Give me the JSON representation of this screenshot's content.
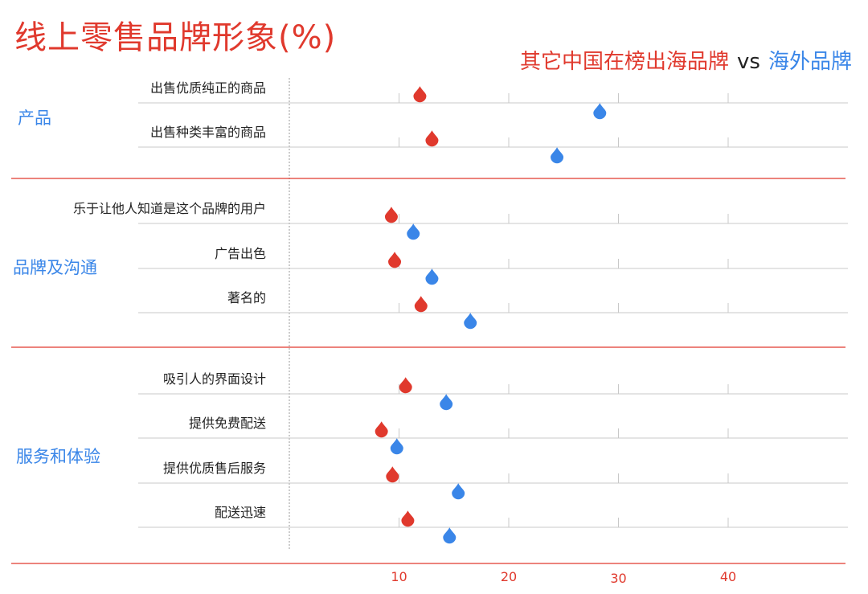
{
  "title": "线上零售品牌形象(%)",
  "legend": {
    "series_a": "其它中国在榜出海品牌",
    "vs": "vs",
    "series_b": "海外品牌"
  },
  "colors": {
    "series_a": "#e0392d",
    "series_b": "#3a86e8",
    "axis": "#e0392d",
    "grid": "#c8c8c8"
  },
  "chart_data": {
    "type": "scatter",
    "title": "线上零售品牌形象(%)",
    "xlabel": "",
    "ylabel": "",
    "xlim": [
      0,
      41.3
    ],
    "x_ticks": [
      "10",
      "20",
      "30",
      "40"
    ],
    "grid": true,
    "legend_position": "top-right",
    "groups": [
      {
        "label": "产品",
        "items": [
          "出售优质纯正的商品",
          "出售种类丰富的商品"
        ]
      },
      {
        "label": "品牌及沟通",
        "items": [
          "乐于让他人知道是这个品牌的用户",
          "广告出色",
          "著名的"
        ]
      },
      {
        "label": "服务和体验",
        "items": [
          "吸引人的界面设计",
          "提供免费配送",
          "提供优质售后服务",
          "配送迅速"
        ]
      }
    ],
    "categories": [
      "出售优质纯正的商品",
      "出售种类丰富的商品",
      "乐于让他人知道是这个品牌的用户",
      "广告出色",
      "著名的",
      "吸引人的界面设计",
      "提供免费配送",
      "提供优质售后服务",
      "配送迅速"
    ],
    "series": [
      {
        "name": "其它中国在榜出海品牌",
        "values": [
          11.9,
          13.0,
          9.3,
          9.6,
          12.0,
          10.6,
          8.4,
          9.4,
          10.8
        ]
      },
      {
        "name": "海外品牌",
        "values": [
          28.3,
          24.4,
          11.3,
          13.0,
          16.5,
          14.3,
          9.8,
          15.4,
          14.6
        ]
      }
    ]
  }
}
